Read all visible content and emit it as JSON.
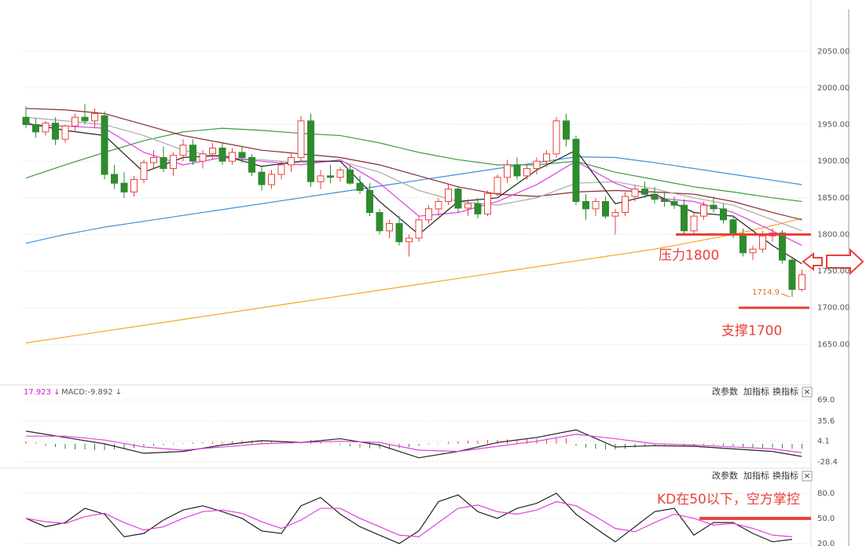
{
  "chart_data": [
    {
      "type": "candlestick",
      "up_color": "#e8413a",
      "down_color": "#2e8b2e",
      "ylim": [
        1600,
        2120
      ],
      "yticks": [
        {
          "value": 1650,
          "label": "1650.00"
        },
        {
          "value": 1700,
          "label": "1700.00"
        },
        {
          "value": 1750,
          "label": "1750.00"
        },
        {
          "value": 1800,
          "label": "1800.00"
        },
        {
          "value": 1850,
          "label": "1850.00"
        },
        {
          "value": 1900,
          "label": "1900.00"
        },
        {
          "value": 1950,
          "label": "1950.00"
        },
        {
          "value": 2000,
          "label": "2000.00"
        },
        {
          "value": 2050,
          "label": "2050.00"
        }
      ],
      "ohlc": [
        [
          1960,
          1975,
          1945,
          1950
        ],
        [
          1950,
          1958,
          1932,
          1940
        ],
        [
          1940,
          1955,
          1935,
          1952
        ],
        [
          1952,
          1960,
          1922,
          1930
        ],
        [
          1930,
          1950,
          1925,
          1948
        ],
        [
          1948,
          1965,
          1940,
          1960
        ],
        [
          1960,
          1978,
          1950,
          1955
        ],
        [
          1955,
          1972,
          1945,
          1965
        ],
        [
          1962,
          1968,
          1875,
          1882
        ],
        [
          1882,
          1895,
          1862,
          1870
        ],
        [
          1870,
          1885,
          1850,
          1858
        ],
        [
          1858,
          1880,
          1852,
          1875
        ],
        [
          1875,
          1902,
          1870,
          1898
        ],
        [
          1898,
          1915,
          1890,
          1905
        ],
        [
          1905,
          1920,
          1885,
          1890
        ],
        [
          1890,
          1912,
          1880,
          1908
        ],
        [
          1908,
          1930,
          1900,
          1922
        ],
        [
          1922,
          1930,
          1895,
          1900
        ],
        [
          1900,
          1915,
          1890,
          1910
        ],
        [
          1910,
          1925,
          1902,
          1918
        ],
        [
          1918,
          1925,
          1895,
          1900
        ],
        [
          1900,
          1918,
          1895,
          1912
        ],
        [
          1912,
          1920,
          1898,
          1905
        ],
        [
          1905,
          1910,
          1880,
          1885
        ],
        [
          1885,
          1892,
          1860,
          1868
        ],
        [
          1868,
          1888,
          1862,
          1882
        ],
        [
          1882,
          1900,
          1875,
          1895
        ],
        [
          1895,
          1912,
          1885,
          1905
        ],
        [
          1905,
          1962,
          1900,
          1955
        ],
        [
          1955,
          1965,
          1865,
          1872
        ],
        [
          1872,
          1888,
          1862,
          1880
        ],
        [
          1880,
          1895,
          1870,
          1878
        ],
        [
          1878,
          1892,
          1872,
          1888
        ],
        [
          1888,
          1895,
          1868,
          1870
        ],
        [
          1870,
          1880,
          1855,
          1860
        ],
        [
          1860,
          1870,
          1825,
          1830
        ],
        [
          1830,
          1835,
          1800,
          1805
        ],
        [
          1805,
          1820,
          1795,
          1815
        ],
        [
          1815,
          1825,
          1785,
          1790
        ],
        [
          1790,
          1800,
          1770,
          1795
        ],
        [
          1795,
          1825,
          1790,
          1820
        ],
        [
          1820,
          1840,
          1815,
          1835
        ],
        [
          1835,
          1850,
          1825,
          1845
        ],
        [
          1845,
          1868,
          1840,
          1862
        ],
        [
          1862,
          1866,
          1830,
          1836
        ],
        [
          1836,
          1848,
          1825,
          1842
        ],
        [
          1842,
          1850,
          1822,
          1828
        ],
        [
          1828,
          1860,
          1825,
          1856
        ],
        [
          1856,
          1882,
          1852,
          1878
        ],
        [
          1878,
          1902,
          1870,
          1895
        ],
        [
          1895,
          1905,
          1875,
          1880
        ],
        [
          1880,
          1895,
          1875,
          1890
        ],
        [
          1890,
          1905,
          1882,
          1900
        ],
        [
          1900,
          1915,
          1892,
          1910
        ],
        [
          1910,
          1960,
          1905,
          1955
        ],
        [
          1955,
          1965,
          1920,
          1930
        ],
        [
          1930,
          1935,
          1840,
          1845
        ],
        [
          1845,
          1855,
          1820,
          1835
        ],
        [
          1835,
          1850,
          1825,
          1845
        ],
        [
          1845,
          1852,
          1822,
          1825
        ],
        [
          1825,
          1835,
          1800,
          1830
        ],
        [
          1830,
          1858,
          1825,
          1852
        ],
        [
          1852,
          1868,
          1845,
          1862
        ],
        [
          1862,
          1872,
          1850,
          1855
        ],
        [
          1855,
          1865,
          1842,
          1848
        ],
        [
          1848,
          1858,
          1838,
          1845
        ],
        [
          1845,
          1852,
          1835,
          1840
        ],
        [
          1840,
          1848,
          1800,
          1805
        ],
        [
          1805,
          1830,
          1800,
          1825
        ],
        [
          1825,
          1845,
          1820,
          1840
        ],
        [
          1840,
          1852,
          1830,
          1835
        ],
        [
          1835,
          1842,
          1815,
          1820
        ],
        [
          1820,
          1826,
          1795,
          1800
        ],
        [
          1800,
          1808,
          1770,
          1775
        ],
        [
          1775,
          1785,
          1765,
          1780
        ],
        [
          1780,
          1805,
          1775,
          1798
        ],
        [
          1798,
          1808,
          1790,
          1802
        ],
        [
          1802,
          1806,
          1760,
          1765
        ],
        [
          1765,
          1770,
          1714.9,
          1725
        ],
        [
          1725,
          1752,
          1722,
          1745
        ]
      ],
      "ma_x": [
        0,
        4,
        8,
        12,
        16,
        20,
        24,
        28,
        32,
        36,
        40,
        44,
        48,
        52,
        56,
        60,
        64,
        68,
        72,
        76,
        79
      ],
      "ma_series": [
        {
          "color": "#f5a623",
          "values": [
            1652,
            1660,
            1668,
            1676,
            1684,
            1692,
            1700,
            1708,
            1716,
            1724,
            1732,
            1740,
            1748,
            1756,
            1764,
            1772,
            1780,
            1790,
            1800,
            1812,
            1822
          ]
        },
        {
          "color": "#3b8fd9",
          "values": [
            1788,
            1800,
            1810,
            1818,
            1826,
            1834,
            1842,
            1850,
            1858,
            1866,
            1874,
            1882,
            1890,
            1898,
            1906,
            1905,
            1898,
            1890,
            1882,
            1874,
            1868
          ]
        },
        {
          "color": "#3f9a3f",
          "values": [
            1877,
            1895,
            1912,
            1928,
            1940,
            1945,
            1942,
            1938,
            1935,
            1925,
            1912,
            1902,
            1895,
            1895,
            1900,
            1885,
            1875,
            1865,
            1858,
            1850,
            1845
          ]
        },
        {
          "color": "#8b2a2a",
          "values": [
            1972,
            1970,
            1965,
            1950,
            1935,
            1925,
            1915,
            1910,
            1905,
            1895,
            1880,
            1865,
            1855,
            1852,
            1858,
            1860,
            1858,
            1855,
            1845,
            1830,
            1820
          ]
        },
        {
          "color": "#aaaaaa",
          "values": [
            1960,
            1955,
            1950,
            1935,
            1915,
            1905,
            1902,
            1898,
            1900,
            1885,
            1860,
            1845,
            1840,
            1850,
            1870,
            1872,
            1862,
            1850,
            1840,
            1820,
            1805
          ]
        },
        {
          "color": "#e040e0",
          "values": [
            1950,
            1948,
            1945,
            1912,
            1895,
            1905,
            1900,
            1895,
            1902,
            1870,
            1825,
            1830,
            1845,
            1868,
            1900,
            1870,
            1850,
            1845,
            1830,
            1805,
            1785
          ]
        },
        {
          "color": "#222222",
          "values": [
            1952,
            1942,
            1935,
            1885,
            1905,
            1908,
            1893,
            1900,
            1900,
            1845,
            1800,
            1845,
            1850,
            1888,
            1915,
            1842,
            1855,
            1830,
            1825,
            1785,
            1760
          ]
        }
      ],
      "low_marker": {
        "index": 78,
        "value": 1714.9
      },
      "annotations": [
        {
          "text": "压力1800",
          "value": 1800
        },
        {
          "text": "支撑1700",
          "value": 1700
        }
      ]
    },
    {
      "type": "macd",
      "ylim": [
        -36,
        84
      ],
      "yticks": [
        {
          "value": 69,
          "label": "69.0"
        },
        35.6,
        4.1,
        -28.4
      ],
      "header": [
        "17.923 ↓",
        "MACD:-9.892 ↓"
      ],
      "toolbar": [
        "改参数",
        "加指标",
        "换指标",
        "×"
      ],
      "up_color": "#e8413a",
      "down_color": "#2e8b2e",
      "histogram": [
        4,
        2,
        -3,
        -5,
        -8,
        -9,
        -9,
        -10,
        -10,
        -9,
        -8,
        -7,
        -5,
        -3,
        -2,
        -1,
        1,
        2,
        2,
        3,
        3,
        4,
        5,
        5,
        4,
        3,
        2,
        1,
        3,
        6,
        3,
        1,
        -2,
        -4,
        -6,
        -7,
        -8,
        -8,
        -7,
        -5,
        -3,
        -1,
        1,
        3,
        4,
        5,
        5,
        6,
        6,
        7,
        7,
        8,
        8,
        8,
        9,
        9,
        -3,
        -6,
        -8,
        -9,
        -9,
        -8,
        -6,
        -4,
        -3,
        -2,
        -2,
        -3,
        -3,
        -2,
        -2,
        -3,
        -4,
        -5,
        -6,
        -6,
        -6,
        -7,
        -8,
        -8
      ],
      "x": [
        0,
        4,
        8,
        12,
        16,
        20,
        24,
        28,
        32,
        36,
        40,
        44,
        48,
        52,
        56,
        60,
        64,
        68,
        72,
        76,
        79
      ],
      "series": [
        {
          "color": "#222222",
          "values": [
            20,
            10,
            0,
            -15,
            -12,
            -2,
            5,
            2,
            8,
            -2,
            -22,
            -12,
            2,
            10,
            22,
            -5,
            -3,
            -4,
            -8,
            -12,
            -20
          ]
        },
        {
          "color": "#e040e0",
          "values": [
            12,
            12,
            6,
            -5,
            -10,
            -5,
            0,
            2,
            4,
            2,
            -10,
            -12,
            -4,
            4,
            15,
            8,
            0,
            -2,
            -5,
            -8,
            -14
          ]
        }
      ]
    },
    {
      "type": "kd",
      "ylim": [
        17,
        93
      ],
      "yticks": [
        {
          "value": 20,
          "label": "20.0"
        },
        {
          "value": 50,
          "label": "50.0"
        },
        {
          "value": 80,
          "label": "80.0"
        }
      ],
      "toolbar": [
        "改参数",
        "加指标",
        "换指标",
        "×"
      ],
      "x": [
        0,
        2,
        4,
        6,
        8,
        10,
        12,
        14,
        16,
        18,
        20,
        22,
        24,
        26,
        28,
        30,
        32,
        34,
        36,
        38,
        40,
        42,
        44,
        46,
        48,
        50,
        52,
        54,
        56,
        58,
        60,
        62,
        64,
        66,
        68,
        70,
        72,
        74,
        76,
        78
      ],
      "series": [
        {
          "color": "#222222",
          "values": [
            50,
            40,
            45,
            62,
            55,
            28,
            32,
            48,
            60,
            65,
            58,
            50,
            35,
            32,
            65,
            75,
            55,
            40,
            30,
            20,
            35,
            70,
            78,
            58,
            50,
            62,
            68,
            80,
            55,
            38,
            22,
            40,
            58,
            62,
            30,
            45,
            45,
            32,
            22,
            25
          ]
        },
        {
          "color": "#e040e0",
          "values": [
            50,
            46,
            44,
            52,
            56,
            45,
            36,
            40,
            50,
            58,
            60,
            56,
            46,
            38,
            48,
            62,
            62,
            50,
            40,
            30,
            28,
            45,
            62,
            66,
            58,
            55,
            60,
            70,
            65,
            52,
            38,
            34,
            45,
            55,
            50,
            42,
            44,
            38,
            30,
            28
          ]
        }
      ],
      "annotations": [
        {
          "text": "KD在50以下，空方掌控",
          "value": 50
        }
      ]
    }
  ]
}
